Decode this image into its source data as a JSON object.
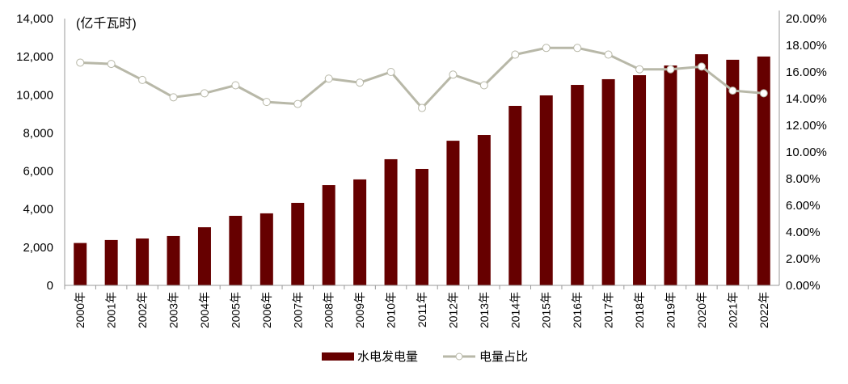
{
  "chart_data": {
    "type": "bar+line",
    "unit_label": "(亿千瓦时)",
    "categories": [
      "2000年",
      "2001年",
      "2002年",
      "2003年",
      "2004年",
      "2005年",
      "2006年",
      "2007年",
      "2008年",
      "2009年",
      "2010年",
      "2011年",
      "2012年",
      "2013年",
      "2014年",
      "2015年",
      "2016年",
      "2017年",
      "2018年",
      "2019年",
      "2020年",
      "2021年",
      "2022年"
    ],
    "series": [
      {
        "name": "水电发电量",
        "type": "bar",
        "axis": "left",
        "color": "#660000",
        "values": [
          2224,
          2380,
          2460,
          2590,
          3050,
          3650,
          3780,
          4330,
          5260,
          5560,
          6620,
          6110,
          7590,
          7890,
          9420,
          9970,
          10520,
          10820,
          11030,
          11540,
          12130,
          11840,
          12010
        ]
      },
      {
        "name": "电量占比",
        "type": "line",
        "axis": "right",
        "color": "#b8b8a8",
        "values": [
          16.7,
          16.6,
          15.4,
          14.1,
          14.4,
          15.0,
          13.75,
          13.6,
          15.5,
          15.2,
          16.0,
          13.3,
          15.8,
          15.0,
          17.3,
          17.8,
          17.8,
          17.3,
          16.2,
          16.2,
          16.4,
          14.6,
          14.4
        ]
      }
    ],
    "left_axis": {
      "ylim": [
        0,
        14000
      ],
      "ticks": [
        "0",
        "2,000",
        "4,000",
        "6,000",
        "8,000",
        "10,000",
        "12,000",
        "14,000"
      ]
    },
    "right_axis": {
      "ylim": [
        0,
        20
      ],
      "ticks": [
        "0.00%",
        "2.00%",
        "4.00%",
        "6.00%",
        "8.00%",
        "10.00%",
        "12.00%",
        "14.00%",
        "16.00%",
        "18.00%",
        "20.00%"
      ]
    },
    "grid": false,
    "legend": "bottom"
  }
}
